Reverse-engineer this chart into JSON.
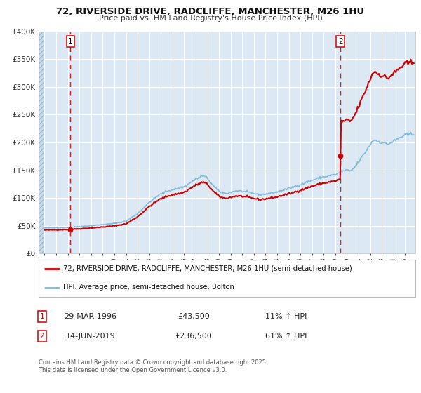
{
  "title_line1": "72, RIVERSIDE DRIVE, RADCLIFFE, MANCHESTER, M26 1HU",
  "title_line2": "Price paid vs. HM Land Registry's House Price Index (HPI)",
  "property_label": "72, RIVERSIDE DRIVE, RADCLIFFE, MANCHESTER, M26 1HU (semi-detached house)",
  "hpi_label": "HPI: Average price, semi-detached house, Bolton",
  "transaction1_date": "29-MAR-1996",
  "transaction1_price": 43500,
  "transaction1_hpi": "11% ↑ HPI",
  "transaction2_date": "14-JUN-2019",
  "transaction2_price": 236500,
  "transaction2_hpi": "61% ↑ HPI",
  "copyright_text": "Contains HM Land Registry data © Crown copyright and database right 2025.\nThis data is licensed under the Open Government Licence v3.0.",
  "property_color": "#cc0000",
  "hpi_color": "#7ab8d9",
  "plot_bg_color": "#dce9f5",
  "fig_bg_color": "#ffffff",
  "marker_color": "#cc0000",
  "vline_color": "#cc0000",
  "transaction1_x": 1996.23,
  "transaction2_x": 2019.45,
  "ylim_max": 400000,
  "xlim_min": 1993.5,
  "xlim_max": 2025.9
}
